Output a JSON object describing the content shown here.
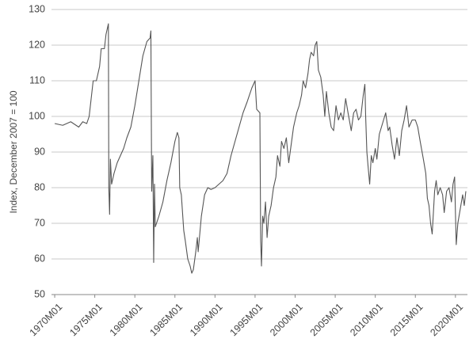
{
  "chart_data": {
    "type": "line",
    "y_label": "Index, December 2007 = 100",
    "xlim": [
      1969.6,
      2021.5
    ],
    "xticks": [
      {
        "value": 1970,
        "label": "1970M01"
      },
      {
        "value": 1975,
        "label": "1975M01"
      },
      {
        "value": 1980,
        "label": "1980M01"
      },
      {
        "value": 1985,
        "label": "1985M01"
      },
      {
        "value": 1990,
        "label": "1990M01"
      },
      {
        "value": 1995,
        "label": "1995M01"
      },
      {
        "value": 2000,
        "label": "2000M01"
      },
      {
        "value": 2005,
        "label": "2005M01"
      },
      {
        "value": 2010,
        "label": "2010M01"
      },
      {
        "value": 2015,
        "label": "2015M01"
      },
      {
        "value": 2020,
        "label": "2020M01"
      }
    ],
    "ylim": [
      50,
      130
    ],
    "yticks": [
      50,
      60,
      70,
      80,
      90,
      100,
      110,
      120,
      130
    ],
    "grid": true,
    "x": [
      1970.0,
      1971.0,
      1972.0,
      1973.0,
      1973.5,
      1974.0,
      1974.3,
      1974.6,
      1974.8,
      1975.2,
      1975.6,
      1975.8,
      1976.2,
      1976.4,
      1976.6,
      1976.7,
      1976.75,
      1976.85,
      1976.95,
      1977.1,
      1977.4,
      1977.8,
      1978.2,
      1978.6,
      1979.0,
      1979.5,
      1980.0,
      1980.5,
      1981.0,
      1981.5,
      1981.9,
      1982.0,
      1982.1,
      1982.25,
      1982.35,
      1982.45,
      1982.55,
      1983.0,
      1983.5,
      1984.0,
      1984.5,
      1985.0,
      1985.3,
      1985.5,
      1985.6,
      1985.8,
      1986.1,
      1986.3,
      1986.6,
      1986.9,
      1987.1,
      1987.3,
      1987.6,
      1987.8,
      1987.9,
      1988.3,
      1988.7,
      1989.1,
      1989.5,
      1990.0,
      1990.5,
      1991.0,
      1991.5,
      1992.0,
      1992.5,
      1993.0,
      1993.5,
      1994.0,
      1994.6,
      1995.0,
      1995.2,
      1995.6,
      1995.7,
      1995.8,
      1995.95,
      1996.1,
      1996.3,
      1996.5,
      1996.7,
      1997.0,
      1997.3,
      1997.6,
      1997.8,
      1998.1,
      1998.3,
      1998.6,
      1998.9,
      1999.2,
      1999.5,
      1999.8,
      2000.2,
      2000.5,
      2000.8,
      2001.0,
      2001.3,
      2001.6,
      2001.8,
      2002.0,
      2002.3,
      2002.5,
      2002.7,
      2002.9,
      2003.2,
      2003.5,
      2003.7,
      2003.9,
      2004.2,
      2004.5,
      2004.8,
      2005.1,
      2005.4,
      2005.7,
      2006.0,
      2006.3,
      2006.6,
      2007.0,
      2007.3,
      2007.6,
      2007.9,
      2008.2,
      2008.5,
      2008.7,
      2008.8,
      2008.95,
      2009.1,
      2009.3,
      2009.5,
      2009.7,
      2010.0,
      2010.2,
      2010.5,
      2010.9,
      2011.3,
      2011.6,
      2011.8,
      2012.1,
      2012.4,
      2012.7,
      2013.0,
      2013.3,
      2013.6,
      2013.9,
      2014.2,
      2014.6,
      2015.0,
      2015.3,
      2015.6,
      2016.0,
      2016.3,
      2016.5,
      2016.7,
      2016.9,
      2017.1,
      2017.4,
      2017.6,
      2017.8,
      2018.1,
      2018.4,
      2018.6,
      2018.9,
      2019.2,
      2019.5,
      2019.7,
      2019.9,
      2020.0,
      2020.1,
      2020.3,
      2020.6,
      2020.9,
      2021.1,
      2021.3
    ],
    "series": [
      {
        "color": "#555555",
        "values": [
          98,
          97.5,
          98.5,
          97,
          98.5,
          98,
          100,
          106,
          110,
          110,
          114,
          119,
          119,
          123,
          125,
          126,
          80,
          72.5,
          88,
          81,
          84,
          87,
          89,
          91,
          94,
          97,
          103,
          110,
          117,
          121,
          122,
          124,
          79,
          89,
          59,
          81,
          69,
          72,
          76,
          82,
          87,
          93,
          95.5,
          94,
          80,
          78,
          68,
          65,
          60,
          58,
          56,
          57,
          62,
          66,
          62,
          72,
          78,
          80,
          79.5,
          80,
          81,
          82,
          84,
          89,
          93,
          97,
          101,
          104,
          108,
          110,
          102,
          101,
          65,
          58,
          72,
          70,
          76,
          66,
          72,
          75,
          80,
          83,
          89,
          86,
          93,
          91,
          94,
          87,
          92,
          97,
          101,
          103,
          106,
          110,
          108,
          112,
          116,
          118,
          117,
          120,
          121,
          113,
          111,
          106,
          100,
          107,
          101,
          97,
          96,
          103,
          99,
          101,
          99,
          105,
          101,
          96,
          101,
          102,
          99,
          100,
          106,
          109,
          100,
          90,
          86,
          81,
          89,
          87,
          91,
          88,
          95,
          98,
          101,
          96,
          97,
          92,
          88,
          94,
          89,
          96,
          99,
          103,
          97,
          99,
          99,
          97,
          93,
          88,
          84,
          77,
          75,
          70,
          67,
          79,
          82,
          78,
          80,
          78,
          73,
          79,
          80,
          76,
          81,
          83,
          73,
          64,
          70,
          74,
          78,
          75,
          79
        ]
      }
    ]
  }
}
